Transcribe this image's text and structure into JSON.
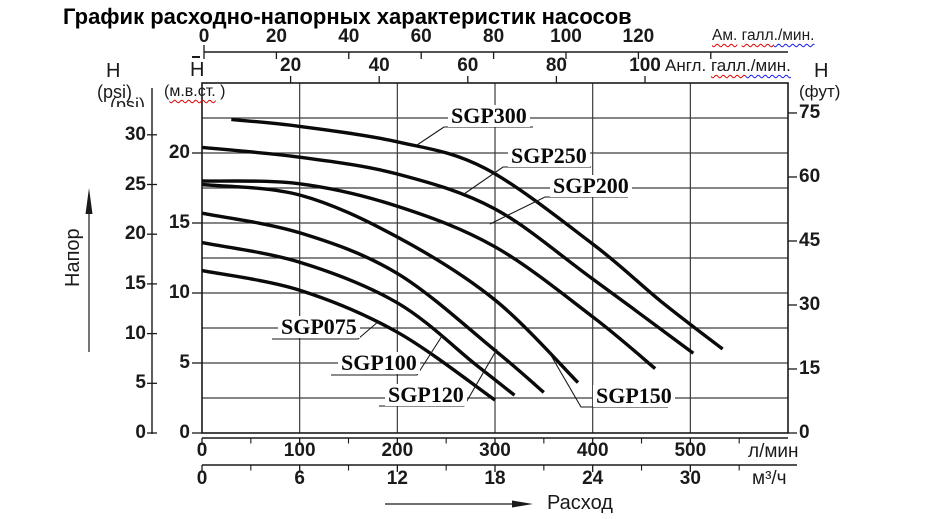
{
  "title": "График расходно-напорных характеристик насосов",
  "axes": {
    "top_us": {
      "label_parts": [
        {
          "t": "Ам.",
          "u": "red"
        },
        {
          "t": " ",
          "u": null
        },
        {
          "t": "галл",
          "u": "red"
        },
        {
          "t": "./мин.",
          "u": "blue"
        }
      ],
      "label": "Ам. галл./мин.",
      "ticks": [
        0,
        20,
        40,
        60,
        80,
        100,
        120
      ]
    },
    "top_imp": {
      "label_parts": [
        {
          "t": "Англ.",
          "u": null
        },
        {
          "t": " ",
          "u": null
        },
        {
          "t": "галл",
          "u": "red"
        },
        {
          "t": "./мин.",
          "u": "blue"
        }
      ],
      "label": "Англ. галл./мин.",
      "ticks": [
        20,
        40,
        60,
        80,
        100
      ]
    },
    "left_psi": {
      "head": "H",
      "unit": "(psi)",
      "ghost": "(psi)",
      "ticks": [
        30,
        25,
        20,
        15,
        10,
        5,
        0
      ]
    },
    "left_m": {
      "head": "H",
      "unit_parts": [
        {
          "t": "(",
          "u": null
        },
        {
          "t": "м.в.ст.",
          "u": "red"
        },
        {
          "t": " )",
          "u": null
        }
      ],
      "unit": "(м.в.ст.)",
      "ticks": [
        20,
        15,
        10,
        5,
        0
      ]
    },
    "right_ft": {
      "head": "H",
      "unit": "(фут)",
      "ticks": [
        75,
        60,
        45,
        30,
        15,
        0
      ]
    },
    "bottom_lmin": {
      "unit": "л/мин",
      "ticks": [
        0,
        100,
        200,
        300,
        400,
        500
      ]
    },
    "bottom_m3h": {
      "unit": "м³/ч",
      "ticks": [
        0,
        6,
        12,
        18,
        24,
        30
      ]
    },
    "head_arrow_label": "Напор",
    "flow_arrow_label": "Расход"
  },
  "chart_data": {
    "type": "line",
    "title": "График расходно-напорных характеристик насосов",
    "x_unit": "л/мин",
    "y_unit": "м.в.ст.",
    "x_range": [
      0,
      600
    ],
    "y_range": [
      0,
      25
    ],
    "grid": {
      "x_step": 100,
      "y_step": 2.5
    },
    "series": [
      {
        "name": "SGP300",
        "points": [
          [
            30,
            22.4
          ],
          [
            100,
            21.9
          ],
          [
            200,
            20.8
          ],
          [
            290,
            18.9
          ],
          [
            400,
            13.5
          ],
          [
            470,
            9.4
          ],
          [
            533,
            6.0
          ]
        ]
      },
      {
        "name": "SGP250",
        "points": [
          [
            0,
            20.4
          ],
          [
            100,
            19.7
          ],
          [
            200,
            18.5
          ],
          [
            300,
            16.0
          ],
          [
            400,
            11.0
          ],
          [
            503,
            5.7
          ]
        ]
      },
      {
        "name": "SGP200",
        "points": [
          [
            0,
            18.0
          ],
          [
            100,
            17.8
          ],
          [
            200,
            16.2
          ],
          [
            300,
            13.3
          ],
          [
            400,
            8.3
          ],
          [
            464,
            4.6
          ]
        ]
      },
      {
        "name": "SGP150",
        "points": [
          [
            0,
            17.75
          ],
          [
            100,
            17.0
          ],
          [
            200,
            14.0
          ],
          [
            300,
            9.5
          ],
          [
            385,
            3.6
          ]
        ]
      },
      {
        "name": "SGP120",
        "points": [
          [
            0,
            15.7
          ],
          [
            100,
            14.3
          ],
          [
            200,
            11.4
          ],
          [
            300,
            5.9
          ],
          [
            350,
            2.9
          ]
        ]
      },
      {
        "name": "SGP100",
        "points": [
          [
            0,
            13.6
          ],
          [
            100,
            12.2
          ],
          [
            200,
            9.3
          ],
          [
            280,
            4.9
          ],
          [
            320,
            2.7
          ]
        ]
      },
      {
        "name": "SGP075",
        "points": [
          [
            0,
            11.6
          ],
          [
            100,
            10.2
          ],
          [
            200,
            7.2
          ],
          [
            300,
            2.35
          ]
        ]
      }
    ]
  }
}
